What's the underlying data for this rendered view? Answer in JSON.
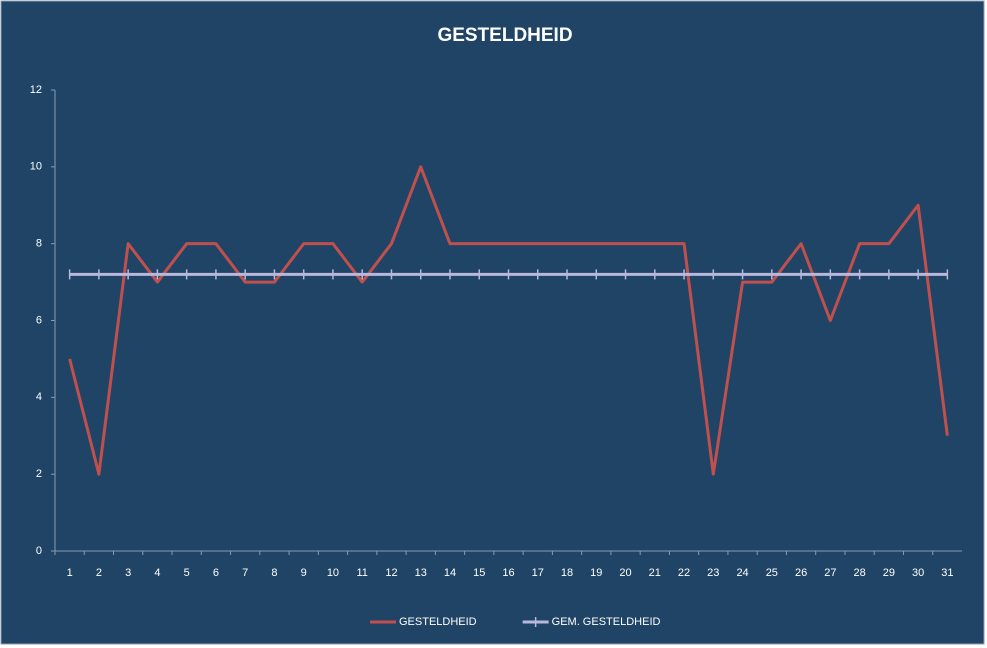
{
  "chart_data": {
    "type": "line",
    "title": "GESTELDHEID",
    "categories": [
      1,
      2,
      3,
      4,
      5,
      6,
      7,
      8,
      9,
      10,
      11,
      12,
      13,
      14,
      15,
      16,
      17,
      18,
      19,
      20,
      21,
      22,
      23,
      24,
      25,
      26,
      27,
      28,
      29,
      30,
      31
    ],
    "series": [
      {
        "name": "GESTELDHEID",
        "color": "#c0504d",
        "values": [
          5,
          2,
          8,
          7,
          8,
          8,
          7,
          7,
          8,
          8,
          7,
          8,
          10,
          8,
          8,
          8,
          8,
          8,
          8,
          8,
          8,
          8,
          2,
          7,
          7,
          8,
          6,
          8,
          8,
          9,
          3
        ]
      },
      {
        "name": "GEM. GESTELDHEID",
        "color": "#b9b7dc",
        "values": [
          7.2,
          7.2,
          7.2,
          7.2,
          7.2,
          7.2,
          7.2,
          7.2,
          7.2,
          7.2,
          7.2,
          7.2,
          7.2,
          7.2,
          7.2,
          7.2,
          7.2,
          7.2,
          7.2,
          7.2,
          7.2,
          7.2,
          7.2,
          7.2,
          7.2,
          7.2,
          7.2,
          7.2,
          7.2,
          7.2,
          7.2
        ]
      }
    ],
    "ylim": [
      0,
      12
    ],
    "yticks": [
      0,
      2,
      4,
      6,
      8,
      10,
      12
    ],
    "grid": false
  }
}
